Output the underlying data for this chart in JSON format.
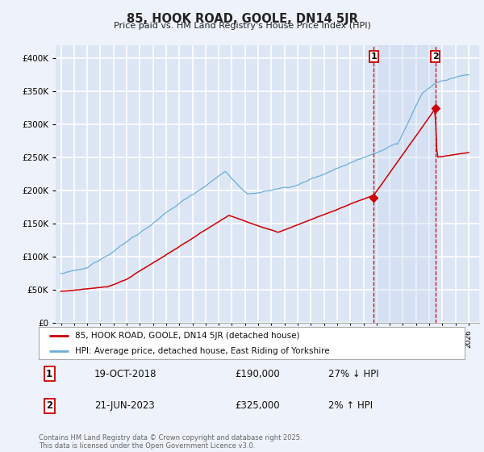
{
  "title": "85, HOOK ROAD, GOOLE, DN14 5JR",
  "subtitle": "Price paid vs. HM Land Registry's House Price Index (HPI)",
  "hpi_label": "HPI: Average price, detached house, East Riding of Yorkshire",
  "price_label": "85, HOOK ROAD, GOOLE, DN14 5JR (detached house)",
  "hpi_color": "#6baed6",
  "price_color": "#cc0000",
  "transaction1_date_label": "19-OCT-2018",
  "transaction1_price": 190000,
  "transaction1_hpi_change": "27% ↓ HPI",
  "transaction2_date_label": "21-JUN-2023",
  "transaction2_price": 325000,
  "transaction2_hpi_change": "2% ↑ HPI",
  "vline_color": "#cc0000",
  "marker1_color": "#cc0000",
  "marker2_color": "#cc0000",
  "ylim": [
    0,
    420000
  ],
  "footer": "Contains HM Land Registry data © Crown copyright and database right 2025.\nThis data is licensed under the Open Government Licence v3.0.",
  "background_color": "#eef2fa",
  "plot_background": "#dce6f5",
  "grid_color": "#ffffff",
  "shade_color": "#c8d8f0",
  "start_year": 1995,
  "end_year": 2026
}
